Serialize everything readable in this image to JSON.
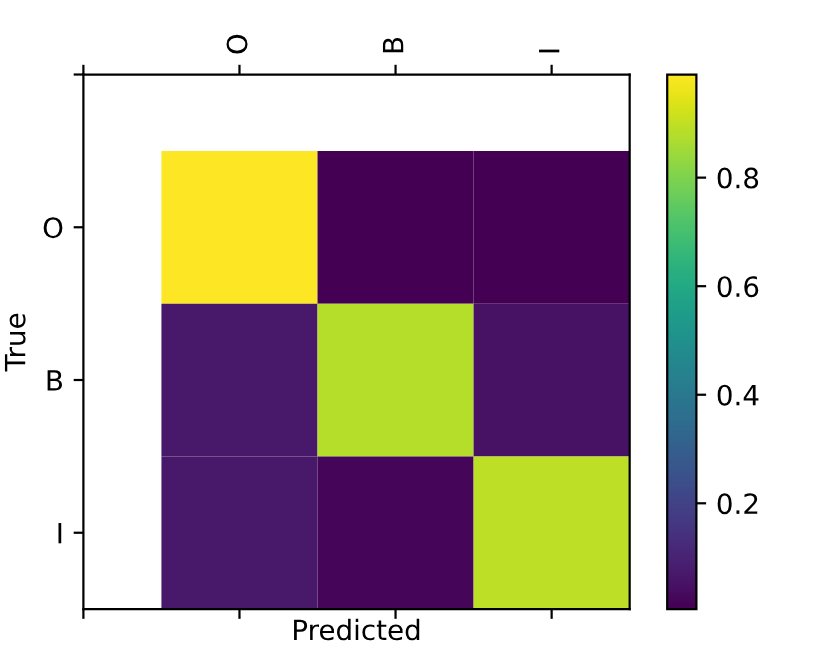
{
  "chart_data": {
    "type": "heatmap",
    "xlabel": "Predicted",
    "ylabel": "True",
    "categories": [
      "O",
      "B",
      "I"
    ],
    "y_categories": [
      "O",
      "B",
      "I"
    ],
    "cells": [
      [
        0.99,
        0.005,
        0.005
      ],
      [
        0.07,
        0.88,
        0.05
      ],
      [
        0.07,
        0.02,
        0.89
      ]
    ],
    "clim": [
      0.005,
      0.99
    ],
    "cticks": [
      0.2,
      0.4,
      0.6,
      0.8
    ]
  }
}
